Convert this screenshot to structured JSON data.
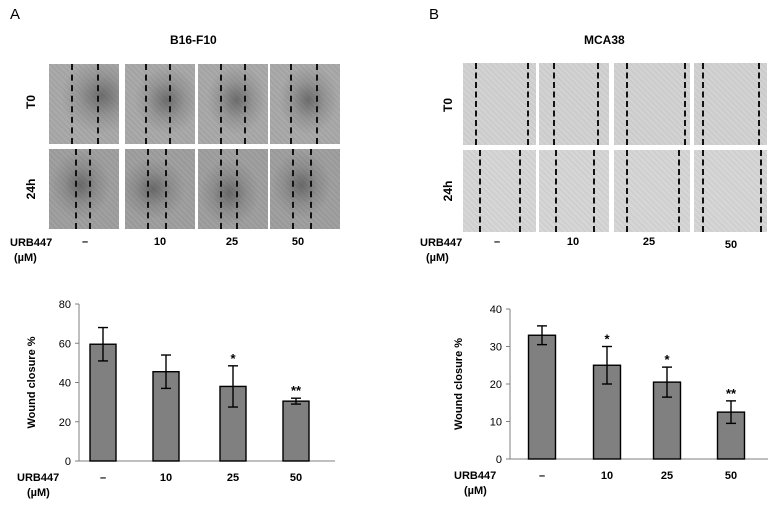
{
  "panels": [
    {
      "letter": "A",
      "title": "B16-F10",
      "rows": [
        "T0",
        "24h"
      ],
      "treatment_label": "URB447",
      "unit_label": "(µM)",
      "conditions": [
        "–",
        "10",
        "25",
        "50"
      ]
    },
    {
      "letter": "B",
      "title": "MCA38",
      "rows": [
        "T0",
        "24h"
      ],
      "treatment_label": "URB447",
      "unit_label": "(µM)",
      "conditions": [
        "–",
        "10",
        "25",
        "50"
      ]
    }
  ],
  "chart_data": [
    {
      "type": "bar",
      "ylabel": "Wound closure %",
      "xlabel": "URB447 (µM)",
      "categories": [
        "–",
        "10",
        "25",
        "50"
      ],
      "values": [
        59.5,
        45.5,
        38,
        30.5
      ],
      "errors": [
        8.5,
        8.5,
        10.5,
        1.5
      ],
      "significance": [
        "",
        "",
        "*",
        "**"
      ],
      "ylim": [
        0,
        80
      ],
      "yticks": [
        0,
        20,
        40,
        60,
        80
      ],
      "bar_color": "#808080",
      "grid": false
    },
    {
      "type": "bar",
      "ylabel": "Wound closure %",
      "xlabel": "URB447 (µM)",
      "categories": [
        "–",
        "10",
        "25",
        "50"
      ],
      "values": [
        33,
        25,
        20.5,
        12.5
      ],
      "errors": [
        2.5,
        5,
        4,
        3
      ],
      "significance": [
        "",
        "*",
        "*",
        "**"
      ],
      "ylim": [
        0,
        40
      ],
      "yticks": [
        0,
        10,
        20,
        30,
        40
      ],
      "bar_color": "#808080",
      "grid": false
    }
  ]
}
